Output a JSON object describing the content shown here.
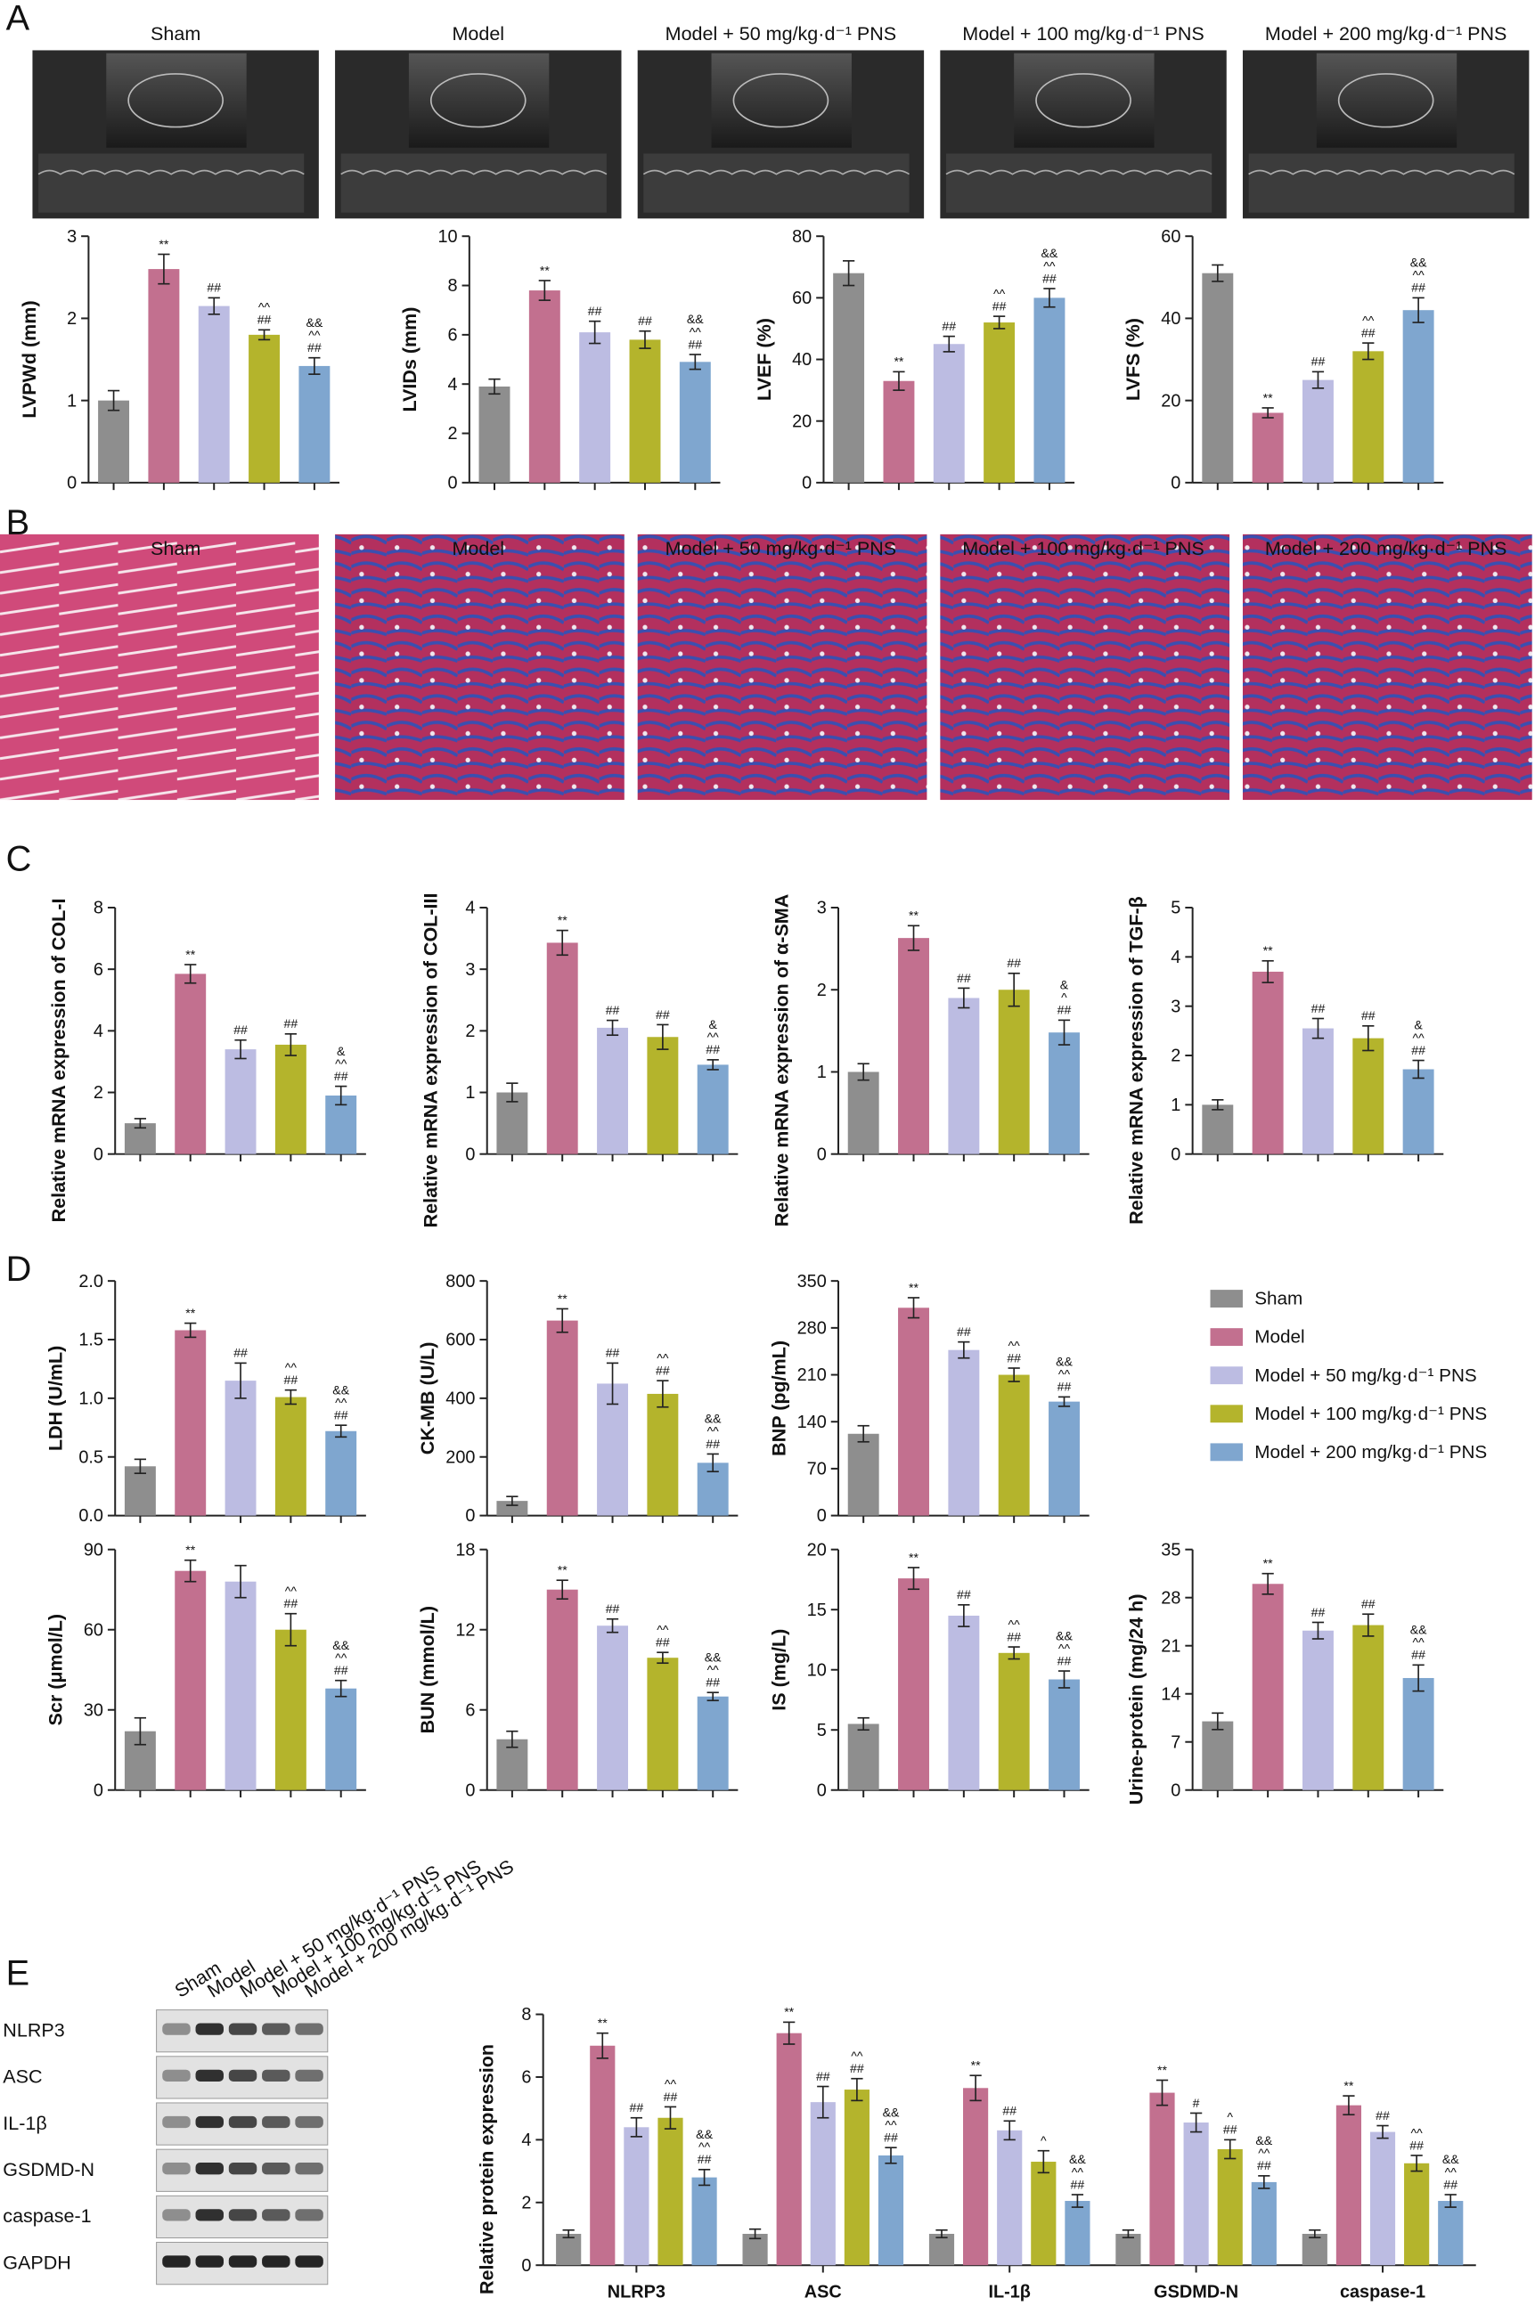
{
  "panels": [
    "A",
    "B",
    "C",
    "D",
    "E"
  ],
  "groups": [
    {
      "name": "Sham",
      "color": "#8e8e8e"
    },
    {
      "name": "Model",
      "color": "#c2708f"
    },
    {
      "name": "Model + 50 mg/kg·d⁻¹ PNS",
      "color": "#bcbce2"
    },
    {
      "name": "Model + 100 mg/kg·d⁻¹ PNS",
      "color": "#b4b42c"
    },
    {
      "name": "Model + 200 mg/kg·d⁻¹ PNS",
      "color": "#7fa6cf"
    }
  ],
  "blot_rows": [
    "NLRP3",
    "ASC",
    "IL-1β",
    "GSDMD-N",
    "caspase-1",
    "GAPDH"
  ],
  "chart_data": [
    {
      "type": "bar",
      "ylabel": "LVPWd (mm)",
      "ylim": [
        0,
        3
      ],
      "yticks": [
        0,
        1,
        2,
        3
      ],
      "values": [
        1.0,
        2.6,
        2.15,
        1.8,
        1.42
      ],
      "errors": [
        0.12,
        0.18,
        0.1,
        0.06,
        0.1
      ],
      "labels": [
        [],
        [
          "**"
        ],
        [
          "##"
        ],
        [
          "^^",
          "##"
        ],
        [
          "&&",
          "^^",
          "##"
        ]
      ]
    },
    {
      "type": "bar",
      "ylabel": "LVIDs (mm)",
      "ylim": [
        0,
        10
      ],
      "yticks": [
        0,
        2,
        4,
        6,
        8,
        10
      ],
      "values": [
        3.9,
        7.8,
        6.1,
        5.8,
        4.9
      ],
      "errors": [
        0.3,
        0.4,
        0.45,
        0.35,
        0.3
      ],
      "labels": [
        [],
        [
          "**"
        ],
        [
          "##"
        ],
        [
          "##"
        ],
        [
          "&&",
          "^^",
          "##"
        ]
      ]
    },
    {
      "type": "bar",
      "ylabel": "LVEF (%)",
      "ylim": [
        0,
        80
      ],
      "yticks": [
        0,
        20,
        40,
        60,
        80
      ],
      "values": [
        68,
        33,
        45,
        52,
        60
      ],
      "errors": [
        4,
        3,
        2.5,
        2,
        3
      ],
      "labels": [
        [],
        [
          "**"
        ],
        [
          "##"
        ],
        [
          "^^",
          "##"
        ],
        [
          "&&",
          "^^",
          "##"
        ]
      ]
    },
    {
      "type": "bar",
      "ylabel": "LVFS (%)",
      "ylim": [
        0,
        60
      ],
      "yticks": [
        0,
        20,
        40,
        60
      ],
      "values": [
        51,
        17,
        25,
        32,
        42
      ],
      "errors": [
        2,
        1.2,
        2,
        2,
        3
      ],
      "labels": [
        [],
        [
          "**"
        ],
        [
          "##"
        ],
        [
          "^^",
          "##"
        ],
        [
          "&&",
          "^^",
          "##"
        ]
      ]
    },
    {
      "type": "bar",
      "ylabel": "Relative mRNA expression of COL-I",
      "ylim": [
        0,
        8
      ],
      "yticks": [
        0,
        2,
        4,
        6,
        8
      ],
      "values": [
        1.0,
        5.85,
        3.4,
        3.55,
        1.9
      ],
      "errors": [
        0.15,
        0.3,
        0.3,
        0.35,
        0.3
      ],
      "labels": [
        [],
        [
          "**"
        ],
        [
          "##"
        ],
        [
          "##"
        ],
        [
          "&",
          "^^",
          "##"
        ]
      ]
    },
    {
      "type": "bar",
      "ylabel": "Relative mRNA expression of COL-III",
      "ylim": [
        0,
        4
      ],
      "yticks": [
        0,
        1,
        2,
        3,
        4
      ],
      "values": [
        1.0,
        3.43,
        2.05,
        1.9,
        1.45
      ],
      "errors": [
        0.15,
        0.2,
        0.12,
        0.2,
        0.08
      ],
      "labels": [
        [],
        [
          "**"
        ],
        [
          "##"
        ],
        [
          "##"
        ],
        [
          "&",
          "^^",
          "##"
        ]
      ]
    },
    {
      "type": "bar",
      "ylabel": "Relative mRNA expression of α-SMA",
      "ylim": [
        0,
        3
      ],
      "yticks": [
        0,
        1,
        2,
        3
      ],
      "values": [
        1.0,
        2.63,
        1.9,
        2.0,
        1.48
      ],
      "errors": [
        0.1,
        0.15,
        0.12,
        0.2,
        0.15
      ],
      "labels": [
        [],
        [
          "**"
        ],
        [
          "##"
        ],
        [
          "##"
        ],
        [
          "&",
          "^",
          "##"
        ]
      ]
    },
    {
      "type": "bar",
      "ylabel": "Relative mRNA expression of TGF-β",
      "ylim": [
        0,
        5
      ],
      "yticks": [
        0,
        1,
        2,
        3,
        4,
        5
      ],
      "values": [
        1.0,
        3.7,
        2.55,
        2.35,
        1.72
      ],
      "errors": [
        0.1,
        0.22,
        0.2,
        0.25,
        0.18
      ],
      "labels": [
        [],
        [
          "**"
        ],
        [
          "##"
        ],
        [
          "##"
        ],
        [
          "&",
          "^^",
          "##"
        ]
      ]
    },
    {
      "type": "bar",
      "ylabel": "LDH (U/mL)",
      "ylim": [
        0,
        2
      ],
      "yticks": [
        {
          "value": 0,
          "label": "0.0"
        },
        0.5,
        {
          "value": 1,
          "label": "1.0"
        },
        1.5,
        {
          "value": 2,
          "label": "2.0"
        }
      ],
      "values": [
        0.42,
        1.58,
        1.15,
        1.01,
        0.72
      ],
      "errors": [
        0.06,
        0.06,
        0.15,
        0.06,
        0.05
      ],
      "labels": [
        [],
        [
          "**"
        ],
        [
          "##"
        ],
        [
          "^^",
          "##"
        ],
        [
          "&&",
          "^^",
          "##"
        ]
      ]
    },
    {
      "type": "bar",
      "ylabel": "CK-MB (U/L)",
      "ylim": [
        0,
        800
      ],
      "yticks": [
        0,
        200,
        400,
        600,
        800
      ],
      "values": [
        50,
        665,
        450,
        415,
        180
      ],
      "errors": [
        15,
        40,
        70,
        45,
        30
      ],
      "labels": [
        [],
        [
          "**"
        ],
        [
          "##"
        ],
        [
          "^^",
          "##"
        ],
        [
          "&&",
          "^^",
          "##"
        ]
      ]
    },
    {
      "type": "bar",
      "ylabel": "BNP (pg/mL)",
      "ylim": [
        0,
        350
      ],
      "yticks": [
        0,
        70,
        140,
        210,
        280,
        350
      ],
      "values": [
        122,
        310,
        247,
        210,
        170
      ],
      "errors": [
        12,
        15,
        12,
        10,
        7
      ],
      "labels": [
        [],
        [
          "**"
        ],
        [
          "##"
        ],
        [
          "^^",
          "##"
        ],
        [
          "&&",
          "^^",
          "##"
        ]
      ]
    },
    {
      "type": "bar",
      "ylabel": "Scr (μmol/L)",
      "ylim": [
        0,
        90
      ],
      "yticks": [
        0,
        30,
        60,
        90
      ],
      "values": [
        22,
        82,
        78,
        60,
        38
      ],
      "errors": [
        5,
        4,
        6,
        6,
        3
      ],
      "labels": [
        [],
        [
          "**"
        ],
        [],
        [
          "^^",
          "##"
        ],
        [
          "&&",
          "^^",
          "##"
        ]
      ]
    },
    {
      "type": "bar",
      "ylabel": "BUN (mmol/L)",
      "ylim": [
        0,
        18
      ],
      "yticks": [
        0,
        6,
        12,
        18
      ],
      "values": [
        3.8,
        15,
        12.3,
        9.9,
        7.0
      ],
      "errors": [
        0.6,
        0.7,
        0.5,
        0.4,
        0.3
      ],
      "labels": [
        [],
        [
          "**"
        ],
        [
          "##"
        ],
        [
          "^^",
          "##"
        ],
        [
          "&&",
          "^^",
          "##"
        ]
      ]
    },
    {
      "type": "bar",
      "ylabel": "IS (mg/L)",
      "ylim": [
        0,
        20
      ],
      "yticks": [
        0,
        5,
        10,
        15,
        20
      ],
      "values": [
        5.5,
        17.6,
        14.5,
        11.4,
        9.2
      ],
      "errors": [
        0.5,
        0.9,
        0.9,
        0.5,
        0.7
      ],
      "labels": [
        [],
        [
          "**"
        ],
        [
          "##"
        ],
        [
          "^^",
          "##"
        ],
        [
          "&&",
          "^^",
          "##"
        ]
      ]
    },
    {
      "type": "bar",
      "ylabel": "Urine-protein (mg/24 h)",
      "ylim": [
        0,
        35
      ],
      "yticks": [
        0,
        7,
        14,
        21,
        28,
        35
      ],
      "values": [
        10,
        30,
        23.2,
        24,
        16.3
      ],
      "errors": [
        1.2,
        1.5,
        1.2,
        1.6,
        1.9
      ],
      "labels": [
        [],
        [
          "**"
        ],
        [
          "##"
        ],
        [
          "##"
        ],
        [
          "&&",
          "^^",
          "##"
        ]
      ]
    },
    {
      "type": "grouped-bar",
      "ylabel": "Relative protein expression",
      "ylim": [
        0,
        8
      ],
      "yticks": [
        0,
        2,
        4,
        6,
        8
      ],
      "categories": [
        "NLRP3",
        "ASC",
        "IL-1β",
        "GSDMD-N",
        "caspase-1"
      ],
      "series": [
        {
          "values": [
            1.0,
            1.0,
            1.0,
            1.0,
            1.0
          ],
          "errors": [
            0.12,
            0.15,
            0.12,
            0.12,
            0.12
          ],
          "labels": [
            [],
            [],
            [],
            [],
            []
          ]
        },
        {
          "values": [
            7.0,
            7.4,
            5.65,
            5.5,
            5.1
          ],
          "errors": [
            0.4,
            0.35,
            0.4,
            0.4,
            0.3
          ],
          "labels": [
            [
              "**"
            ],
            [
              "**"
            ],
            [
              "**"
            ],
            [
              "**"
            ],
            [
              "**"
            ]
          ]
        },
        {
          "values": [
            4.4,
            5.2,
            4.3,
            4.55,
            4.25
          ],
          "errors": [
            0.3,
            0.5,
            0.3,
            0.3,
            0.2
          ],
          "labels": [
            [
              "##"
            ],
            [
              "##"
            ],
            [
              "##"
            ],
            [
              "#"
            ],
            [
              "##"
            ]
          ]
        },
        {
          "values": [
            4.7,
            5.6,
            3.3,
            3.7,
            3.25
          ],
          "errors": [
            0.35,
            0.35,
            0.35,
            0.3,
            0.25
          ],
          "labels": [
            [
              "^^",
              "##"
            ],
            [
              "^^",
              "##"
            ],
            [
              "^"
            ],
            [
              "^",
              "##"
            ],
            [
              "^^",
              "##"
            ]
          ]
        },
        {
          "values": [
            2.8,
            3.5,
            2.05,
            2.65,
            2.05
          ],
          "errors": [
            0.25,
            0.25,
            0.2,
            0.2,
            0.2
          ],
          "labels": [
            [
              "&&",
              "^^",
              "##"
            ],
            [
              "&&",
              "^^",
              "##"
            ],
            [
              "&&",
              "^^",
              "##"
            ],
            [
              "&&",
              "^^",
              "##"
            ],
            [
              "&&",
              "^^",
              "##"
            ]
          ]
        }
      ]
    }
  ]
}
